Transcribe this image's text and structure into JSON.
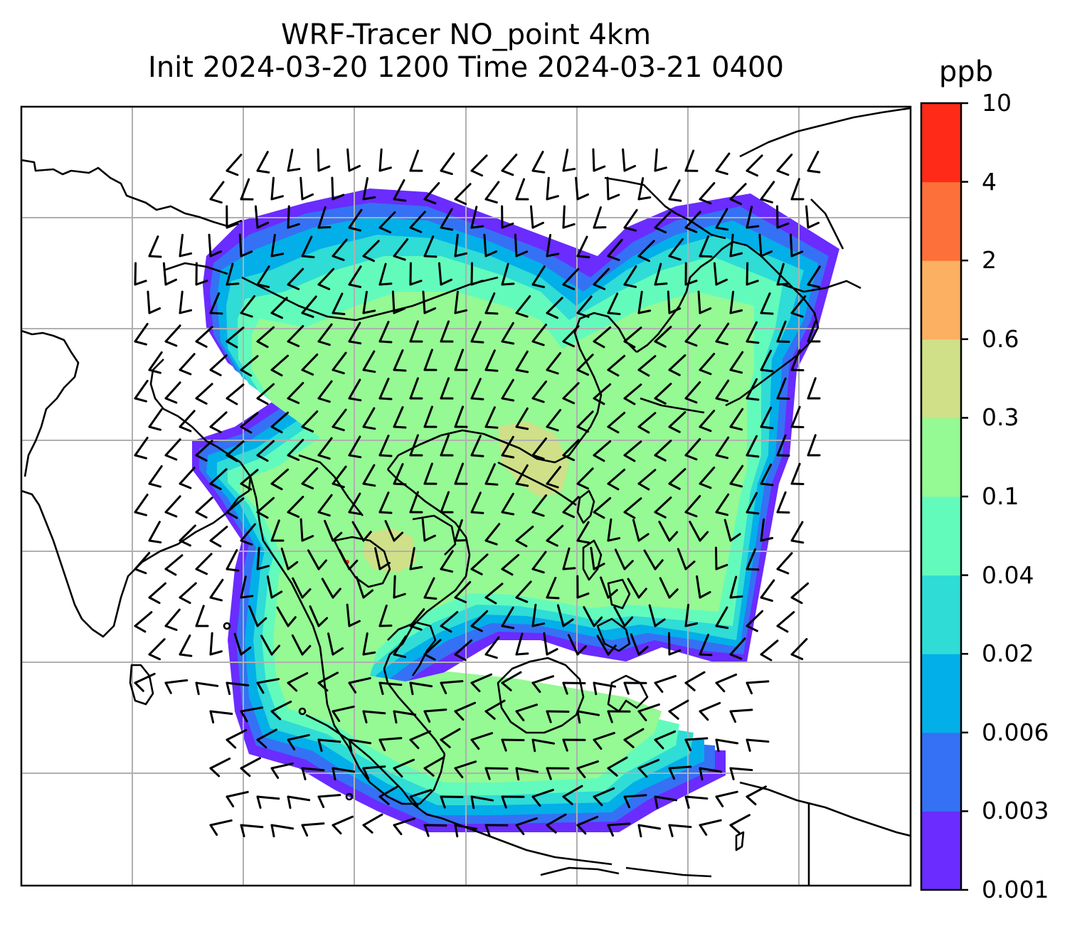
{
  "figure": {
    "title_line1": "WRF-Tracer NO_point 4km",
    "title_line2": "Init 2024-03-20 1200 Time 2024-03-21 0400"
  },
  "colorbar": {
    "label": "ppb",
    "levels": [
      "0.001",
      "0.003",
      "0.006",
      "0.02",
      "0.04",
      "0.1",
      "0.3",
      "0.6",
      "2",
      "4",
      "10"
    ],
    "colors": [
      "#6a2cff",
      "#3571f4",
      "#03afe8",
      "#2fdcd6",
      "#63fbbc",
      "#95f994",
      "#cfe089",
      "#fbb062",
      "#fe703a",
      "#ff2a17"
    ]
  },
  "map": {
    "gridline_color": "#b0b0b0",
    "coastline_color": "#000000",
    "barb_color": "#000000"
  }
}
